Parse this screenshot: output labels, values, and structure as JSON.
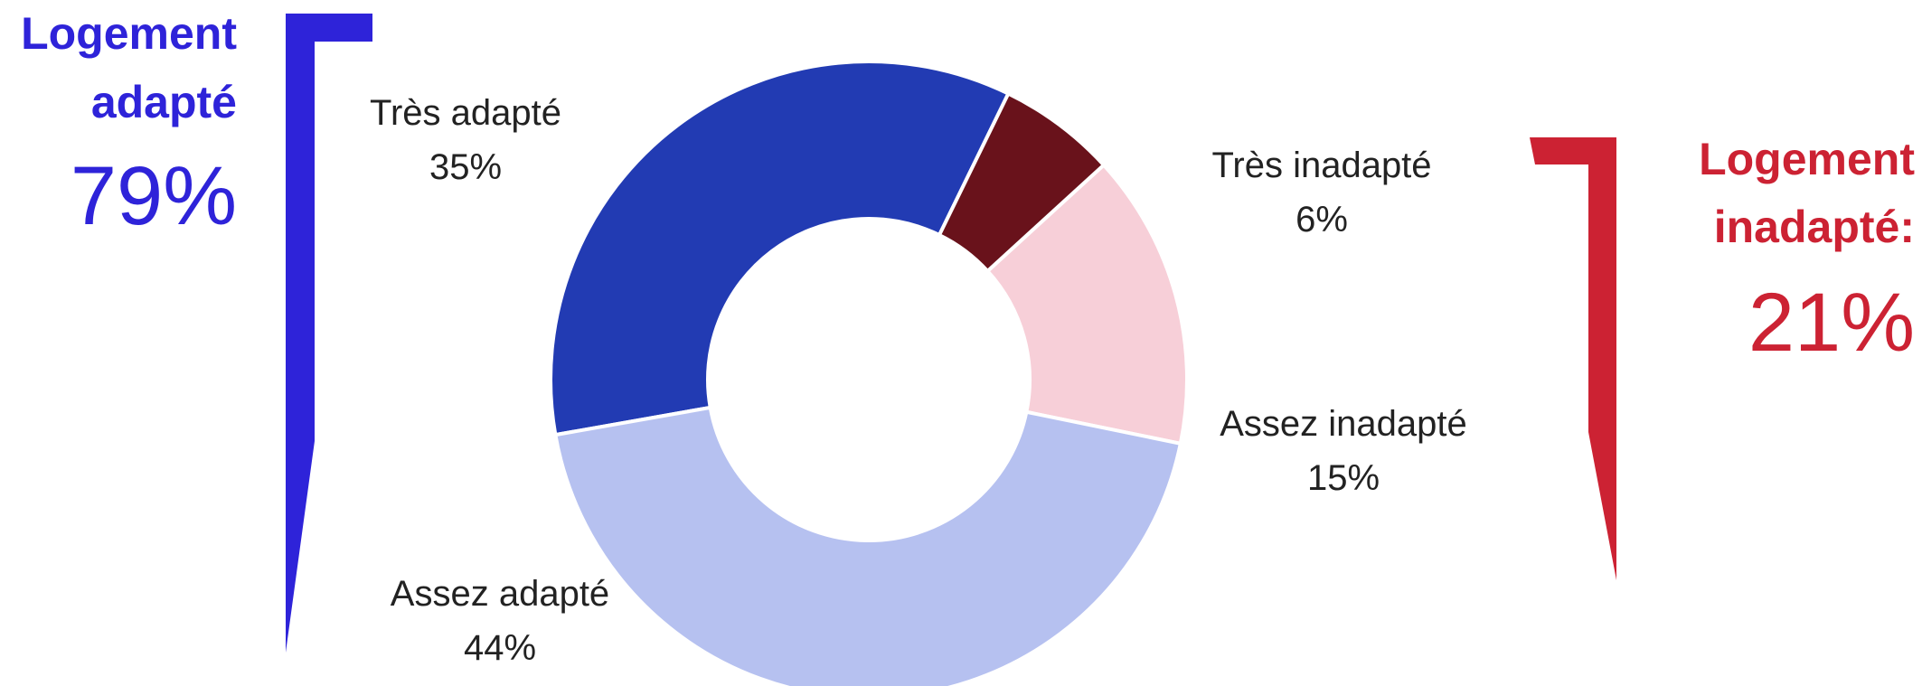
{
  "chart_data": {
    "type": "pie",
    "donut": true,
    "slices": [
      {
        "label": "Très adapté",
        "value": 35,
        "value_label": "35%",
        "color": "#223bb3"
      },
      {
        "label": "Très inadapté",
        "value": 6,
        "value_label": "6%",
        "color": "#69121b"
      },
      {
        "label": "Assez inadapté",
        "value": 15,
        "value_label": "15%",
        "color": "#f7cfd8"
      },
      {
        "label": "Assez adapté",
        "value": 44,
        "value_label": "44%",
        "color": "#b6c1f0"
      }
    ],
    "groups": [
      {
        "title_line1": "Logement",
        "title_line2": "adapté",
        "value_label": "79%",
        "value": 79,
        "color": "#2e23d9"
      },
      {
        "title_line1": "Logement",
        "title_line2": "inadapté:",
        "value_label": "21%",
        "value": 21,
        "color": "#cc2233"
      }
    ]
  }
}
